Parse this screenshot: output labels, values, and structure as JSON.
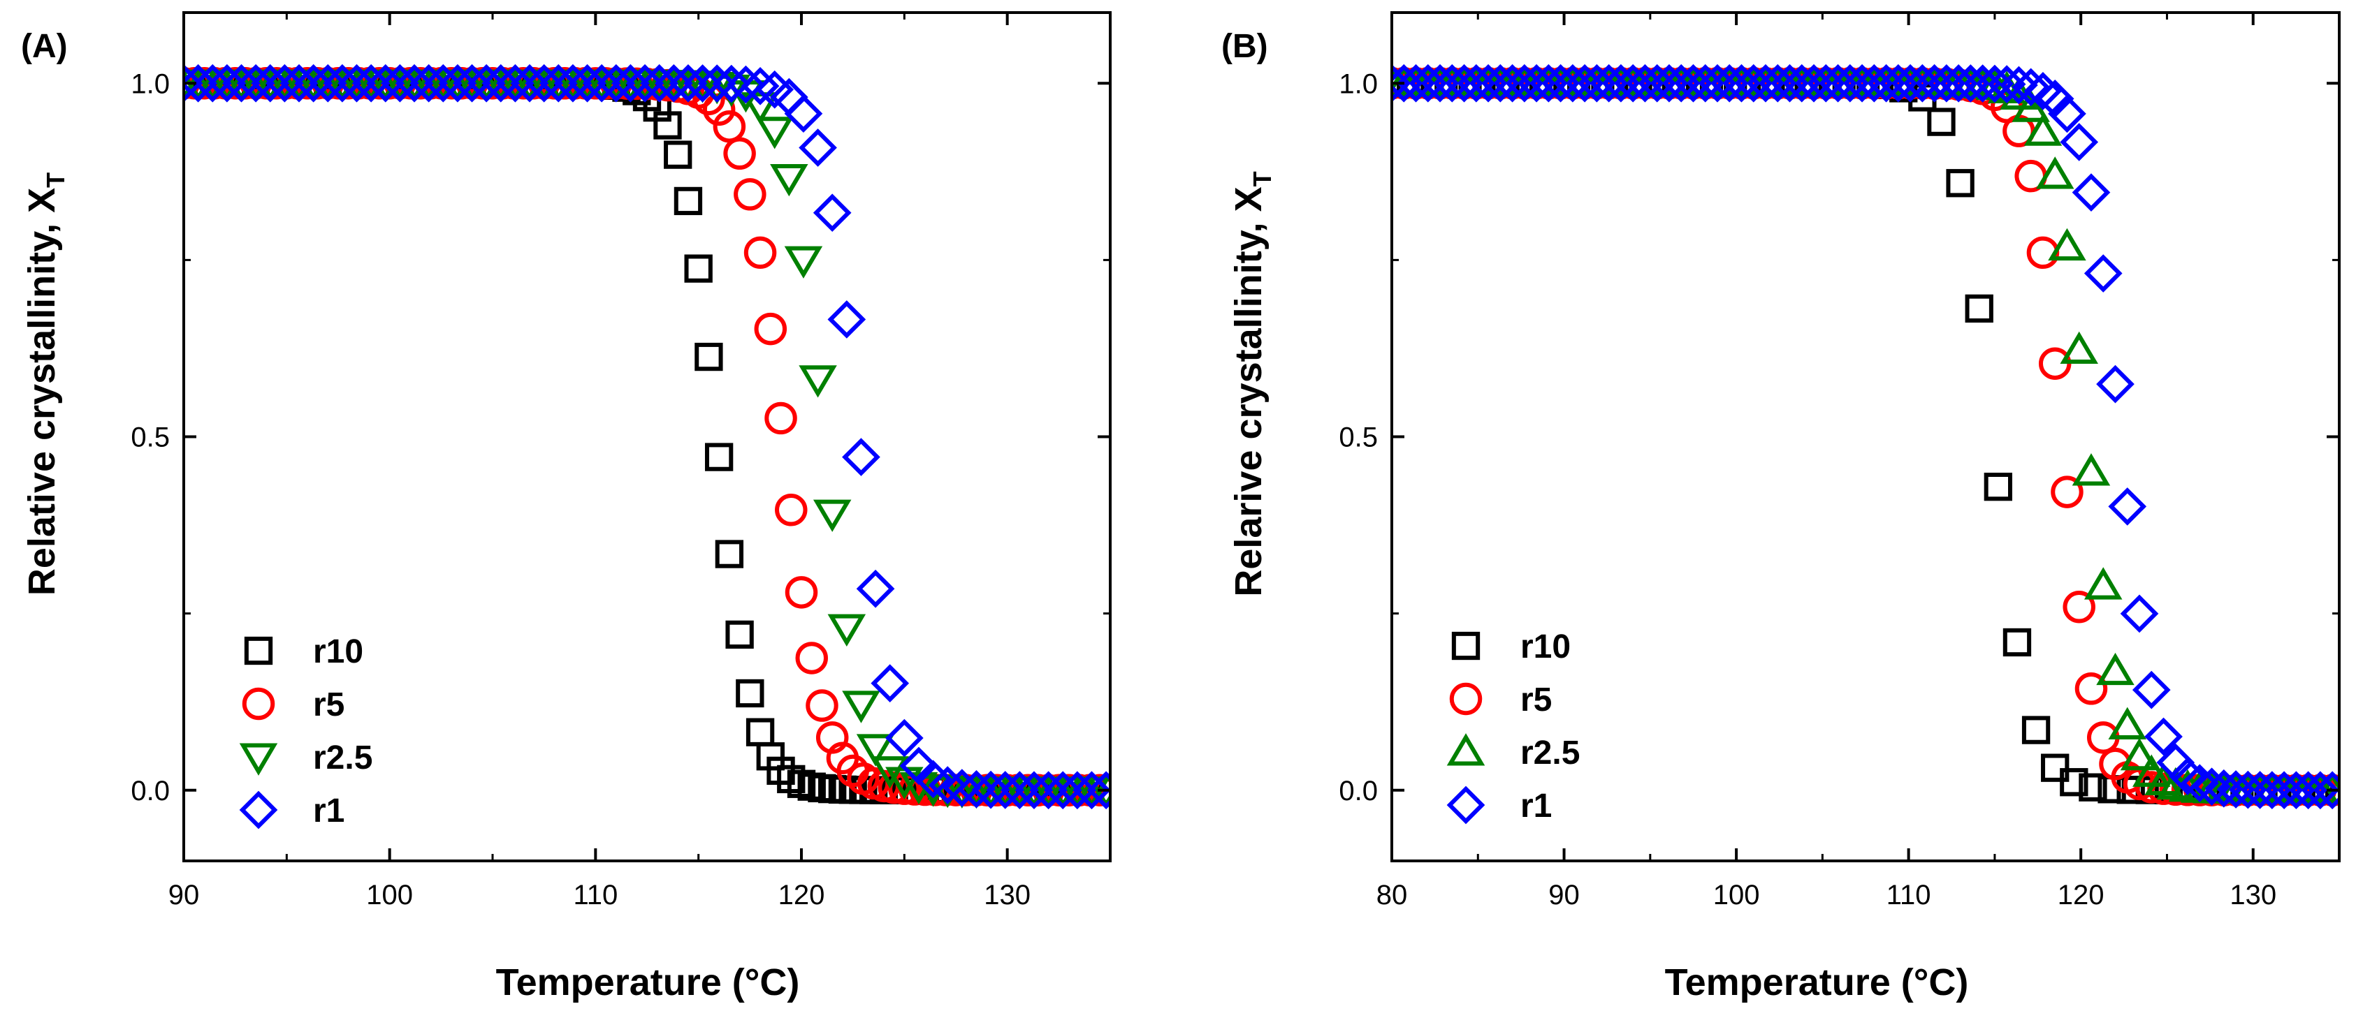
{
  "chart_data": [
    {
      "type": "scatter",
      "panel_label": "(A)",
      "xlabel": "Temperature (°C)",
      "ylabel_main": "Relative crystallinity, X",
      "ylabel_sub": "T",
      "xlim": [
        90,
        135
      ],
      "ylim": [
        -0.1,
        1.1
      ],
      "xticks": [
        90,
        100,
        110,
        120,
        130
      ],
      "xtick_labels": [
        "90",
        "100",
        "110",
        "120",
        "130"
      ],
      "yticks": [
        0.0,
        0.5,
        1.0
      ],
      "ytick_labels": [
        "0.0",
        "0.5",
        "1.0"
      ],
      "legend_position": "bottom-left",
      "series": [
        {
          "name": "r10",
          "marker": "square",
          "color": "#000000",
          "t_mid": 115.9,
          "slope": 1.15,
          "x_start": 90.0,
          "x_step": 0.5,
          "x_end": 135.0
        },
        {
          "name": "r5",
          "marker": "circle",
          "color": "#ff0000",
          "t_mid": 119.1,
          "slope": 1.05,
          "x_start": 90.0,
          "x_step": 0.5,
          "x_end": 135.0
        },
        {
          "name": "r2.5",
          "marker": "triangle-down",
          "color": "#008000",
          "t_mid": 121.1,
          "slope": 1.1,
          "x_start": 90.0,
          "x_step": 0.7,
          "x_end": 135.0
        },
        {
          "name": "r1",
          "marker": "diamond",
          "color": "#0000ff",
          "t_mid": 122.8,
          "slope": 1.15,
          "x_start": 90.0,
          "x_step": 0.7,
          "x_end": 135.0
        }
      ]
    },
    {
      "type": "scatter",
      "panel_label": "(B)",
      "xlabel": "Temperature  (°C)",
      "ylabel_main": "Relarive crystallinity, X",
      "ylabel_sub": "T",
      "xlim": [
        80,
        135
      ],
      "ylim": [
        -0.1,
        1.1
      ],
      "xticks": [
        80,
        90,
        100,
        110,
        120,
        130
      ],
      "xtick_labels": [
        "80",
        "90",
        "100",
        "110",
        "120",
        "130"
      ],
      "yticks": [
        0.0,
        0.5,
        1.0
      ],
      "ytick_labels": [
        "0.0",
        "0.5",
        "1.0"
      ],
      "legend_position": "bottom-left",
      "series": [
        {
          "name": "r10",
          "marker": "square",
          "color": "#000000",
          "t_mid": 114.9,
          "slope": 0.95,
          "x_start": 80.0,
          "x_step": 1.1,
          "x_end": 135.0
        },
        {
          "name": "r5",
          "marker": "circle",
          "color": "#ff0000",
          "t_mid": 118.9,
          "slope": 1.05,
          "x_start": 80.0,
          "x_step": 0.7,
          "x_end": 135.0
        },
        {
          "name": "r2.5",
          "marker": "triangle-up",
          "color": "#008000",
          "t_mid": 120.4,
          "slope": 1.0,
          "x_start": 80.0,
          "x_step": 0.7,
          "x_end": 135.0
        },
        {
          "name": "r1",
          "marker": "diamond",
          "color": "#0000ff",
          "t_mid": 122.3,
          "slope": 1.0,
          "x_start": 80.0,
          "x_step": 0.7,
          "x_end": 135.0
        }
      ]
    }
  ]
}
